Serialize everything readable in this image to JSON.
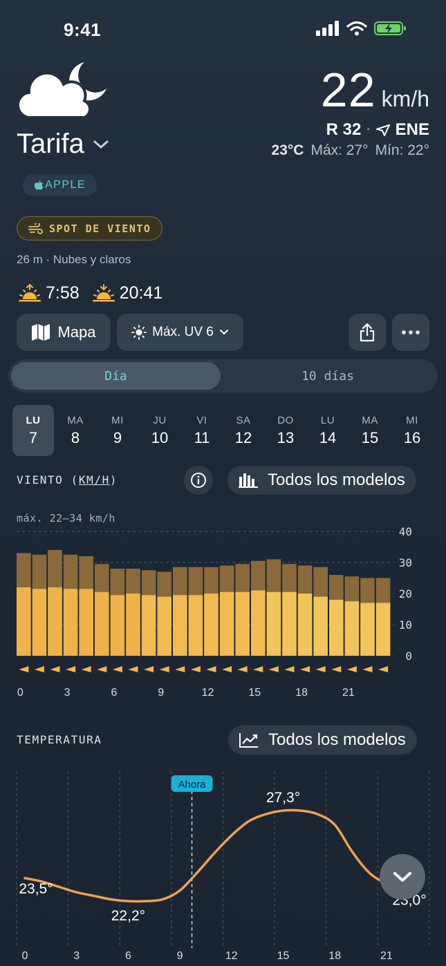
{
  "status": {
    "time": "9:41"
  },
  "location": {
    "name": "Tarifa"
  },
  "current": {
    "wind_speed": "22",
    "wind_unit": "km/h",
    "gust": "R 32",
    "direction": "ENE",
    "temp": "23°C",
    "max": "Máx: 27°",
    "min": "Mín: 22°"
  },
  "source_badge": "APPLE",
  "spot_badge": "SPOT DE VIENTO",
  "altitude_text": "26 m · Nubes y claros",
  "sun": {
    "sunrise": "7:58",
    "sunset": "20:41"
  },
  "buttons": {
    "map": "Mapa",
    "uv": "Máx. UV 6"
  },
  "tabs": {
    "day": "Día",
    "ten_days": "10 días"
  },
  "days": [
    {
      "name": "LU",
      "num": "7",
      "selected": true
    },
    {
      "name": "MA",
      "num": "8"
    },
    {
      "name": "MI",
      "num": "9"
    },
    {
      "name": "JU",
      "num": "10"
    },
    {
      "name": "VI",
      "num": "11"
    },
    {
      "name": "SA",
      "num": "12"
    },
    {
      "name": "DO",
      "num": "13"
    },
    {
      "name": "LU",
      "num": "14"
    },
    {
      "name": "MA",
      "num": "15"
    },
    {
      "name": "MI",
      "num": "16"
    }
  ],
  "wind_section": {
    "title": "VIENTO (",
    "unit": "KM/H",
    "title_end": ")",
    "models_label": "Todos los modelos",
    "note": "máx. 22–34 km/h"
  },
  "temp_section": {
    "title": "TEMPERATURA",
    "models_label": "Todos los modelos",
    "now_label": "Ahora"
  },
  "colors": {
    "wind_bar": "#f2b84f",
    "gust_bar": "#8a6a3a",
    "temp_line": "#f0a050",
    "accent": "#74d3cf",
    "now_badge": "#1ab0d8"
  },
  "chart_data": [
    {
      "type": "bar",
      "title": "VIENTO (KM/H)",
      "x": [
        0,
        1,
        2,
        3,
        4,
        5,
        6,
        7,
        8,
        9,
        10,
        11,
        12,
        13,
        14,
        15,
        16,
        17,
        18,
        19,
        20,
        21,
        22,
        23
      ],
      "xticks": [
        0,
        3,
        6,
        9,
        12,
        15,
        18,
        21
      ],
      "series": [
        {
          "name": "wind",
          "values": [
            22,
            21.5,
            22,
            21.5,
            21.5,
            20.5,
            19.5,
            20,
            19.5,
            19,
            19.5,
            19.5,
            20,
            20.5,
            20.5,
            21,
            20.5,
            20.5,
            20,
            19,
            18,
            17.5,
            17,
            17
          ]
        },
        {
          "name": "gust",
          "values": [
            33,
            32.5,
            34,
            32.5,
            32,
            29.5,
            28,
            28,
            27.5,
            27,
            28.5,
            28.5,
            28.5,
            29,
            29.5,
            30.5,
            31,
            29.5,
            29,
            28.5,
            26,
            25.5,
            25,
            25
          ]
        }
      ],
      "ylim": [
        0,
        40
      ],
      "yticks": [
        0,
        10,
        20,
        30,
        40
      ],
      "direction": "ENE"
    },
    {
      "type": "line",
      "title": "TEMPERATURA",
      "x": [
        0,
        1,
        2,
        3,
        4,
        5,
        6,
        7,
        8,
        9,
        10,
        11,
        12,
        13,
        14,
        15,
        16,
        17,
        18,
        19,
        20,
        21,
        22
      ],
      "values": [
        23.5,
        23.3,
        23.0,
        22.7,
        22.5,
        22.3,
        22.2,
        22.2,
        22.3,
        22.8,
        23.8,
        24.9,
        25.9,
        26.7,
        27.1,
        27.3,
        27.3,
        27.1,
        26.5,
        25.0,
        23.8,
        23.2,
        23.0
      ],
      "xticks": [
        0,
        3,
        6,
        9,
        12,
        15,
        18,
        21
      ],
      "labels": [
        {
          "x": 0,
          "text": "23,5°"
        },
        {
          "x": 6,
          "text": "22,2°"
        },
        {
          "x": 15,
          "text": "27,3°"
        },
        {
          "x": 22,
          "text": "23,0°"
        }
      ],
      "now_x": 9.7,
      "ylim": [
        21.0,
        28.2
      ]
    }
  ]
}
